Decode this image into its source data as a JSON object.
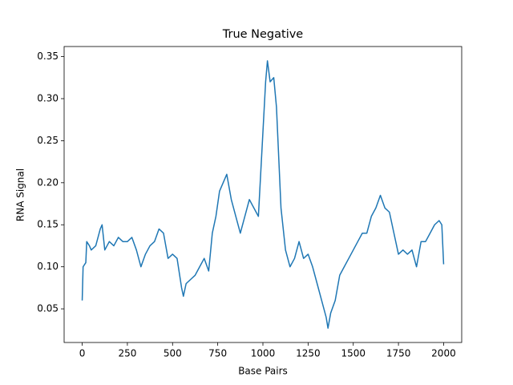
{
  "chart_data": {
    "type": "line",
    "title": "True Negative",
    "x_label": "Base Pairs",
    "y_label": "RNA Signal",
    "x": [
      0,
      5,
      20,
      25,
      40,
      50,
      75,
      100,
      110,
      125,
      150,
      175,
      200,
      225,
      250,
      275,
      300,
      325,
      350,
      375,
      400,
      425,
      450,
      475,
      500,
      525,
      550,
      560,
      575,
      600,
      625,
      650,
      675,
      700,
      720,
      740,
      760,
      780,
      800,
      825,
      850,
      875,
      900,
      925,
      950,
      975,
      1000,
      1015,
      1025,
      1040,
      1060,
      1075,
      1100,
      1125,
      1150,
      1175,
      1200,
      1225,
      1250,
      1275,
      1300,
      1325,
      1350,
      1360,
      1375,
      1400,
      1425,
      1450,
      1475,
      1500,
      1525,
      1550,
      1575,
      1600,
      1625,
      1650,
      1675,
      1700,
      1725,
      1750,
      1775,
      1800,
      1825,
      1850,
      1875,
      1900,
      1925,
      1950,
      1975,
      1990,
      2000
    ],
    "series": [
      {
        "name": "RNA Signal",
        "color": "#1f77b4",
        "values": [
          0.06,
          0.1,
          0.105,
          0.13,
          0.125,
          0.12,
          0.125,
          0.145,
          0.15,
          0.12,
          0.13,
          0.125,
          0.135,
          0.13,
          0.13,
          0.135,
          0.12,
          0.1,
          0.115,
          0.125,
          0.13,
          0.145,
          0.14,
          0.11,
          0.115,
          0.11,
          0.075,
          0.065,
          0.08,
          0.085,
          0.09,
          0.1,
          0.11,
          0.095,
          0.14,
          0.16,
          0.19,
          0.2,
          0.21,
          0.18,
          0.16,
          0.14,
          0.16,
          0.18,
          0.17,
          0.16,
          0.26,
          0.32,
          0.345,
          0.32,
          0.325,
          0.29,
          0.17,
          0.12,
          0.1,
          0.11,
          0.13,
          0.11,
          0.115,
          0.1,
          0.08,
          0.06,
          0.04,
          0.027,
          0.045,
          0.06,
          0.09,
          0.1,
          0.11,
          0.12,
          0.13,
          0.14,
          0.14,
          0.16,
          0.17,
          0.185,
          0.17,
          0.165,
          0.14,
          0.115,
          0.12,
          0.115,
          0.12,
          0.1,
          0.13,
          0.13,
          0.14,
          0.15,
          0.155,
          0.15,
          0.103
        ]
      }
    ],
    "xlim": [
      -100,
      2100
    ],
    "ylim": [
      0.01,
      0.362
    ],
    "xticks": [
      0,
      250,
      500,
      750,
      1000,
      1250,
      1500,
      1750,
      2000
    ],
    "yticks": [
      0.05,
      {
        "value": 0.1,
        "label": "0.10"
      },
      0.15,
      {
        "value": 0.2,
        "label": "0.20"
      },
      0.25,
      {
        "value": 0.3,
        "label": "0.30"
      },
      0.35
    ]
  }
}
